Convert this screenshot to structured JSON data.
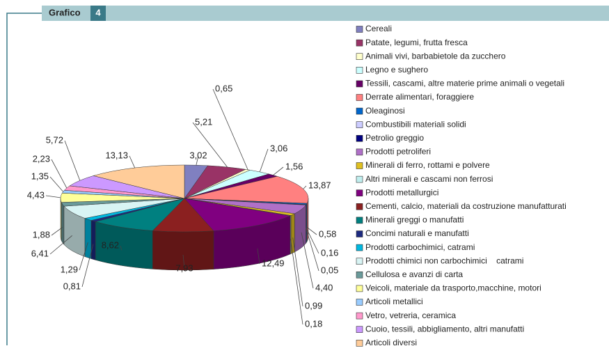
{
  "header": {
    "title": "Grafico",
    "number": "4"
  },
  "chart_data": {
    "type": "pie",
    "categories": [
      "Cereali",
      "Patate, legumi, frutta fresca",
      "Animali vivi, barbabietole da zucchero",
      "Legno e sughero",
      "Tessili, cascami, altre materie prime animali o vegetali",
      "Derrate alimentari, foraggiere",
      "Oleaginosi",
      "Combustibili materiali solidi",
      "Petrolio greggio",
      "Prodotti petroliferi",
      "Minerali di ferro, rottami e polvere",
      "Altri minerali e cascami non ferrosi",
      "Prodotti metallurgici",
      "Cementi, calcio, materiali da costruzione manufatturati",
      "Minerali greggi o manufatti",
      "Concimi naturali e manufatti",
      "Prodotti carbochimici, catrami",
      "Prodotti chimici non carbochimici    catrami",
      "Cellulosa e avanzi di carta",
      "Veicoli, materiale da trasporto,macchine, motori",
      "Articoli metallici",
      "Vetro, vetreria, ceramica",
      "Cuoio, tessili, abbigliamento, altri manufatti",
      "Articoli diversi"
    ],
    "values": [
      3.02,
      5.21,
      0.65,
      3.06,
      1.56,
      13.87,
      0.58,
      0.16,
      0.05,
      4.4,
      0.99,
      0.18,
      12.49,
      7.93,
      8.62,
      0.81,
      1.29,
      6.41,
      1.88,
      4.43,
      1.35,
      2.23,
      5.72,
      13.13
    ],
    "value_labels": [
      "3,02",
      "5,21",
      "0,65",
      "3,06",
      "1,56",
      "13,87",
      "0,58",
      "0,16",
      "0,05",
      "4,40",
      "0,99",
      "0,18",
      "12,49",
      "7,93",
      "8,62",
      "0,81",
      "1,29",
      "6,41",
      "1,88",
      "4,43",
      "1,35",
      "2,23",
      "5,72",
      "13,13"
    ],
    "colors": [
      "#8080c0",
      "#993366",
      "#ffffcc",
      "#ccffff",
      "#660066",
      "#ff8080",
      "#0066cc",
      "#ccccff",
      "#000080",
      "#b070c8",
      "#e0c020",
      "#c0eeee",
      "#800080",
      "#8b2020",
      "#008080",
      "#1c2a80",
      "#00b8e0",
      "#d8f4f4",
      "#6a9a9a",
      "#ffff99",
      "#99ccff",
      "#ff99cc",
      "#cc99ff",
      "#ffcc99"
    ]
  }
}
